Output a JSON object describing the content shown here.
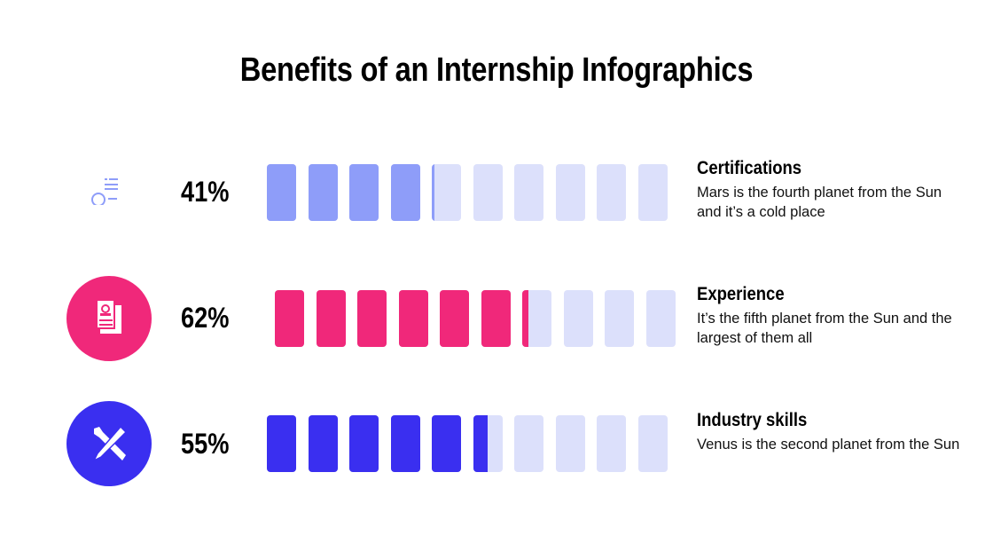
{
  "title": "Benefits of an Internship Infographics",
  "chart_data": {
    "type": "bar",
    "track_color": "#DCE0FB",
    "segments": 10,
    "series": [
      {
        "label": "Certifications",
        "value": 41,
        "display": "41%",
        "color": "#8E9DF9",
        "icon": "certificate-icon",
        "description": "Mars is the fourth planet from the Sun and it’s a cold place"
      },
      {
        "label": "Experience",
        "value": 62,
        "display": "62%",
        "color": "#F0287A",
        "icon": "resume-document-icon",
        "description": "It’s the fifth planet from the Sun and the largest of them all"
      },
      {
        "label": "Industry skills",
        "value": 55,
        "display": "55%",
        "color": "#3A2FF0",
        "icon": "wrench-pencil-icon",
        "description": "Venus is the second planet from the Sun"
      }
    ]
  }
}
